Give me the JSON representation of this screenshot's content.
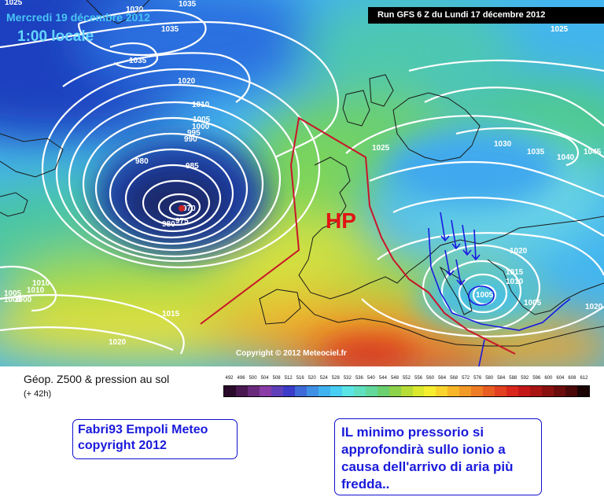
{
  "header": {
    "date": "Mercredi 19 décembre 2012",
    "time": "1:00 locale",
    "run": "Run GFS 6 Z du Lundi 17 décembre 2012"
  },
  "map": {
    "copyright": "Copyright © 2012 Meteociel.fr",
    "hp_label": "HP",
    "isobar_labels": [
      "1025",
      "1030",
      "1035",
      "1035",
      "1035",
      "1020",
      "1010",
      "1005",
      "1000",
      "995",
      "990",
      "985",
      "980",
      "975",
      "970",
      "980",
      "1025",
      "1030",
      "1035",
      "1040",
      "1045",
      "1025",
      "1020",
      "1015",
      "1010",
      "1005",
      "1005",
      "1020",
      "1015",
      "1010",
      "1005",
      "1000",
      "1000",
      "1010",
      "1020"
    ],
    "colors": {
      "deep_low": "#1e2f7a",
      "ocean_blue": "#3aa2ee",
      "green": "#49c87a",
      "yellow": "#f2e43c",
      "orange": "#f08f2a",
      "red": "#e1451f"
    }
  },
  "legend": {
    "title": "Géop. Z500 & pression au sol",
    "subtitle": "(+ 42h)",
    "scale_values": [
      "492",
      "496",
      "500",
      "504",
      "508",
      "512",
      "516",
      "520",
      "524",
      "528",
      "532",
      "536",
      "540",
      "544",
      "548",
      "552",
      "556",
      "560",
      "564",
      "568",
      "572",
      "576",
      "580",
      "584",
      "588",
      "592",
      "596",
      "600",
      "604",
      "608",
      "612"
    ],
    "scale_colors": [
      "#2a0a2a",
      "#4a1850",
      "#6a2a7c",
      "#8a3ca6",
      "#6040b8",
      "#3c3cc8",
      "#3e6ad8",
      "#4090e6",
      "#40b2f0",
      "#48cef2",
      "#5ae4e4",
      "#60e0c0",
      "#62d89a",
      "#6ad070",
      "#8cd24a",
      "#b6dc38",
      "#dae82e",
      "#f6ee30",
      "#f8d42c",
      "#f6b628",
      "#f29a26",
      "#ee7c24",
      "#e85e22",
      "#e24020",
      "#d8261c",
      "#c41818",
      "#a81414",
      "#8a1010",
      "#6a0c0c",
      "#4a0808",
      "#1a0404"
    ]
  },
  "annotations": {
    "author_line1": "Fabri93 Empoli Meteo",
    "author_line2": "copyright 2012",
    "note_line1": "IL minimo pressorio si",
    "note_line2": "approfondirà sullo ionio a",
    "note_line3": "causa dell'arrivo di aria più",
    "note_line4": "fredda.."
  }
}
